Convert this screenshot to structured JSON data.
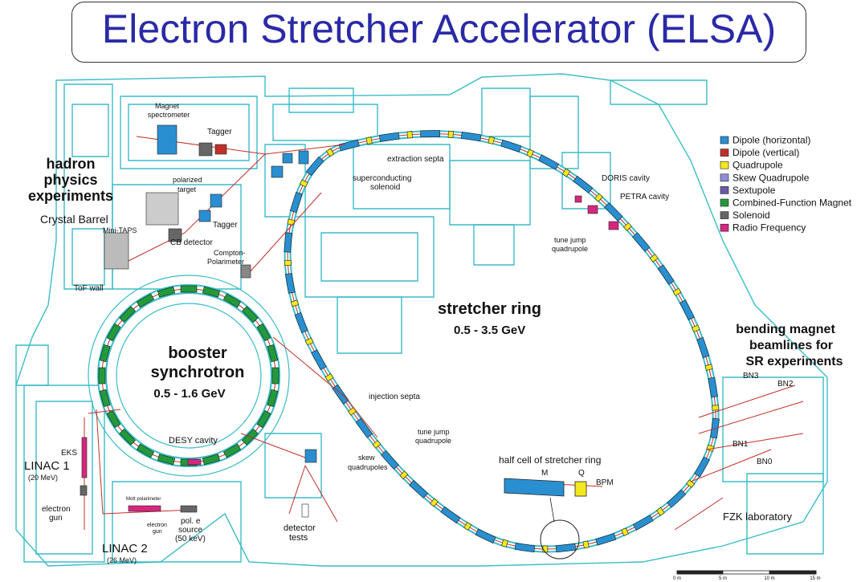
{
  "title": "Electron Stretcher Accelerator (ELSA)",
  "legend": [
    {
      "label": "Dipole (horizontal)",
      "color": "#2a8fd0"
    },
    {
      "label": "Dipole (vertical)",
      "color": "#c0302a"
    },
    {
      "label": "Quadrupole",
      "color": "#f2e81f"
    },
    {
      "label": "Skew Quadrupole",
      "color": "#8e8ed6"
    },
    {
      "label": "Sextupole",
      "color": "#6a5aa8"
    },
    {
      "label": "Combined-Function Magnet",
      "color": "#239a3a"
    },
    {
      "label": "Solenoid",
      "color": "#666666"
    },
    {
      "label": "Radio Frequency",
      "color": "#d6277f"
    }
  ],
  "labels": {
    "hadron": [
      "hadron",
      "physics",
      "experiments"
    ],
    "crystal_barrel": "Crystal Barrel",
    "magnet_spectrometer": [
      "Magnet",
      "spectrometer"
    ],
    "tagger_top": "Tagger",
    "tagger_mid": "Tagger",
    "polarized_target": [
      "polarized",
      "target"
    ],
    "mini_taps": "Mini-TAPS",
    "cb_detector": "CB detector",
    "compton": [
      "Compton-",
      "Polarimeter"
    ],
    "tof_wall": "ToF wall",
    "extraction_septa": "extraction septa",
    "superconducting": [
      "superconducting",
      "solenoid"
    ],
    "doris": "DORIS cavity",
    "petra": "PETRA cavity",
    "tune_jump_top": [
      "tune jump",
      "quadrupole"
    ],
    "stretcher_ring": "stretcher ring",
    "stretcher_energy": "0.5 - 3.5 GeV",
    "bending": [
      "bending magnet",
      "beamlines for",
      "SR experiments"
    ],
    "booster": [
      "booster",
      "synchrotron"
    ],
    "booster_energy": "0.5 - 1.6 GeV",
    "injection_septa": "injection septa",
    "tune_jump_bottom": [
      "tune jump",
      "quadrupole"
    ],
    "skew": [
      "skew",
      "quadrupoles"
    ],
    "desy": "DESY cavity",
    "eks": "EKS",
    "linac1": "LINAC 1",
    "linac1_energy": "(20 MeV)",
    "electron_gun": [
      "electron",
      "gun"
    ],
    "mott": "Mott polarimeter",
    "electron_gun_small": [
      "electron",
      "gun"
    ],
    "pol_source": [
      "pol. e",
      "source",
      "(50 keV)"
    ],
    "linac2": "LINAC 2",
    "linac2_energy": "(26 MeV)",
    "detector_tests": [
      "detector",
      "tests"
    ],
    "half_cell": "half cell of stretcher ring",
    "hc_m": "M",
    "hc_q": "Q",
    "hc_bpm": "BPM",
    "bn0": "BN0",
    "bn1": "BN1",
    "bn2": "BN2",
    "bn3": "BN3",
    "fzk": "FZK  laboratory",
    "scale": [
      "0 m",
      "5 m",
      "10 m",
      "15 m"
    ]
  }
}
